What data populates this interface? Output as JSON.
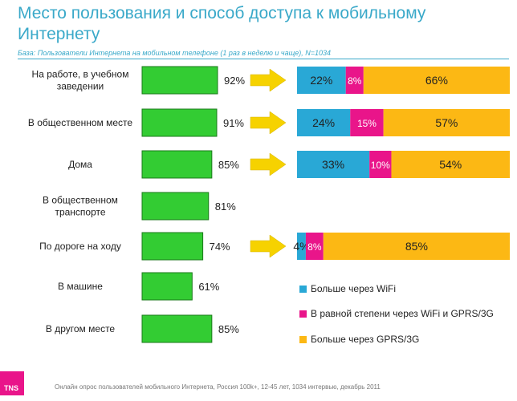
{
  "slide": {
    "title": "Место пользования и способ доступа к мобильному Интернету",
    "base_note": "База: Пользователи Интернета на мобильном телефоне (1 раз в неделю и чаще), N=1034",
    "footer": "Онлайн опрос пользователей мобильного Интернета, Россия 100k+, 12-45 лет, 1034 интервью, декабрь 2011",
    "logo": "TNS"
  },
  "colors": {
    "title": "#3aa9c9",
    "green_bar": "#33cc33",
    "wifi": "#29a8d6",
    "equal": "#e9158a",
    "gprs": "#fcb814",
    "arrow": "#f6d200"
  },
  "chart_data": [
    {
      "type": "bar",
      "orientation": "horizontal",
      "categories": [
        "На работе, в учебном заведении",
        "В общественном месте",
        "Дома",
        "В общественном транспорте",
        "По дороге на ходу",
        "В машине",
        "В другом месте"
      ],
      "values": [
        92,
        91,
        85,
        81,
        74,
        61,
        85
      ],
      "value_labels": [
        "92%",
        "91%",
        "85%",
        "81%",
        "74%",
        "61%",
        "85%"
      ],
      "xlim": [
        0,
        100
      ],
      "color": "#33cc33"
    },
    {
      "type": "bar",
      "orientation": "horizontal",
      "stacked": true,
      "categories": [
        "На работе, в учебном заведении",
        "В общественном месте",
        "Дома",
        "По дороге на ходу"
      ],
      "series": [
        {
          "name": "Больше через WiFi",
          "color": "#29a8d6",
          "values": [
            22,
            24,
            33,
            4
          ],
          "labels": [
            "22%",
            "24%",
            "33%",
            "4%"
          ]
        },
        {
          "name": "В равной степени через WiFi и GPRS/3G",
          "color": "#e9158a",
          "values": [
            8,
            15,
            10,
            8
          ],
          "labels": [
            "8%",
            "15%",
            "10%",
            "8%"
          ]
        },
        {
          "name": "Больше через GPRS/3G",
          "color": "#fcb814",
          "values": [
            66,
            57,
            54,
            85
          ],
          "labels": [
            "66%",
            "57%",
            "54%",
            "85%"
          ]
        }
      ],
      "legend_position": "bottom-right"
    }
  ]
}
